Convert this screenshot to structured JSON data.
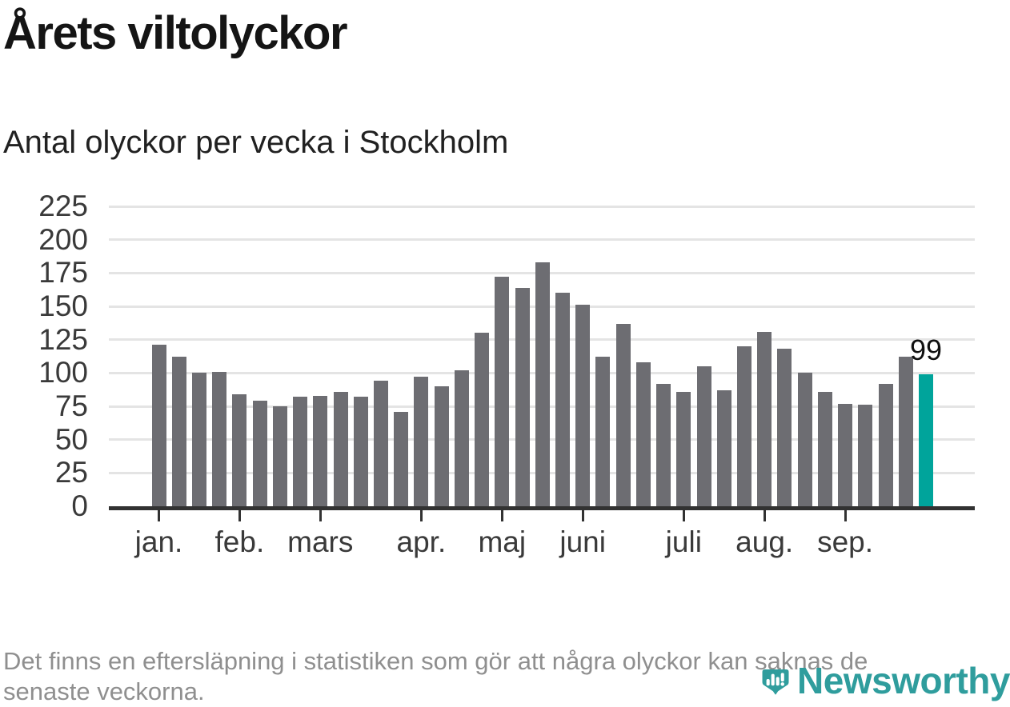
{
  "header": {
    "title": "Årets viltolyckor",
    "subtitle": "Antal olyckor per vecka i Stockholm"
  },
  "chart_data": {
    "type": "bar",
    "title": "Årets viltolyckor",
    "subtitle": "Antal olyckor per vecka i Stockholm",
    "xlabel": "",
    "ylabel": "",
    "ylim": [
      0,
      225
    ],
    "grid": true,
    "y_ticks": [
      0,
      25,
      50,
      75,
      100,
      125,
      150,
      175,
      200,
      225
    ],
    "categories_note": "weekly bars, January through late September",
    "values": [
      121,
      112,
      100,
      101,
      84,
      79,
      75,
      82,
      83,
      86,
      82,
      94,
      71,
      97,
      90,
      102,
      130,
      172,
      164,
      183,
      160,
      151,
      112,
      137,
      108,
      92,
      86,
      105,
      87,
      120,
      131,
      118,
      100,
      86,
      77,
      76,
      92,
      112,
      99
    ],
    "highlight_index": 38,
    "highlight_value": 99,
    "highlight_label": "99",
    "x_month_ticks": [
      {
        "label": "jan.",
        "week": 0
      },
      {
        "label": "feb.",
        "week": 4
      },
      {
        "label": "mars",
        "week": 8
      },
      {
        "label": "apr.",
        "week": 13
      },
      {
        "label": "maj",
        "week": 17
      },
      {
        "label": "juni",
        "week": 21
      },
      {
        "label": "juli",
        "week": 26
      },
      {
        "label": "aug.",
        "week": 30
      },
      {
        "label": "sep.",
        "week": 34
      }
    ],
    "colors": {
      "bar": "#6d6d72",
      "highlight": "#00a49b",
      "gridline": "#e4e4e4",
      "axis": "#323232",
      "tick_label": "#3a3a3a"
    }
  },
  "footnote": {
    "line1": "Det finns en eftersläpning i statistiken som gör att några olyckor kan saknas de",
    "line2": "senaste veckorna."
  },
  "logo": {
    "name": "Newsworthy",
    "color": "#2f9d9d",
    "icon": "newsworthy-bubble-chart-icon"
  }
}
